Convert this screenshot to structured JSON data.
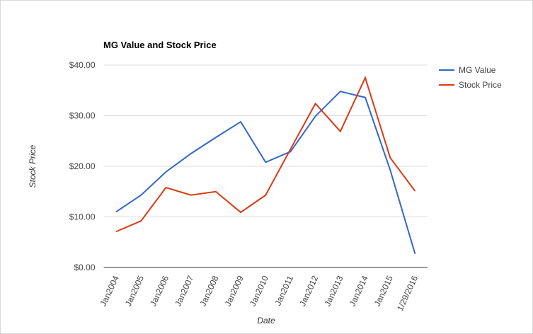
{
  "chart_data": {
    "type": "line",
    "title": "MG Value and Stock Price",
    "x_label": "Date",
    "y_label": "Stock Price",
    "categories": [
      "Jan2004",
      "Jan2005",
      "Jan2006",
      "Jan2007",
      "Jan2008",
      "Jan2009",
      "Jan2010",
      "Jan2011",
      "Jan2012",
      "Jan2013",
      "Jan2014",
      "Jan2015",
      "1/29/2016"
    ],
    "series": [
      {
        "name": "MG Value",
        "color": "#3366cc",
        "values": [
          11.0,
          14.3,
          18.9,
          22.5,
          25.7,
          28.8,
          20.8,
          22.9,
          29.9,
          34.8,
          33.6,
          19.3,
          2.7
        ]
      },
      {
        "name": "Stock Price",
        "color": "#dc3912",
        "values": [
          7.1,
          9.2,
          15.8,
          14.3,
          15.0,
          10.9,
          14.3,
          23.4,
          32.4,
          26.9,
          37.5,
          21.7,
          15.1
        ]
      }
    ],
    "ylim": [
      0,
      40
    ],
    "yticks": [
      {
        "value": 0,
        "label": "$0.00"
      },
      {
        "value": 10,
        "label": "$10.00"
      },
      {
        "value": 20,
        "label": "$20.00"
      },
      {
        "value": 30,
        "label": "$30.00"
      },
      {
        "value": 40,
        "label": "$40.00"
      }
    ],
    "grid": true,
    "legend": "right"
  }
}
